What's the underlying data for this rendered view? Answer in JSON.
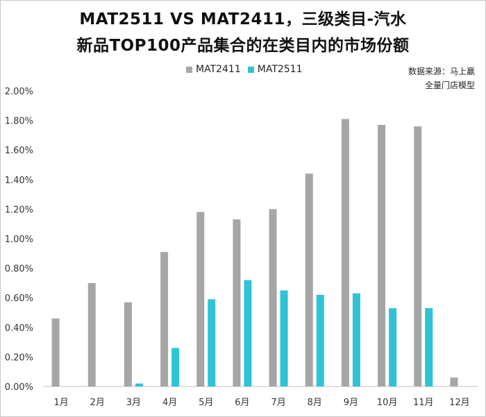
{
  "title_line1": "MAT2511 VS MAT2411，三级类目-汽水",
  "title_line2": "新品TOP100产品集合的在类目内的市场份额",
  "source_line1": "数据来源：马上赢",
  "source_line2": "全量门店模型",
  "chart_data": {
    "type": "bar",
    "categories": [
      "1月",
      "2月",
      "3月",
      "4月",
      "5月",
      "6月",
      "7月",
      "8月",
      "9月",
      "10月",
      "11月",
      "12月"
    ],
    "series": [
      {
        "name": "MAT2411",
        "color": "#a6a6a6",
        "values": [
          0.46,
          0.7,
          0.57,
          0.91,
          1.18,
          1.13,
          1.2,
          1.44,
          1.81,
          1.77,
          1.76,
          0.06
        ]
      },
      {
        "name": "MAT2511",
        "color": "#2ec4d6",
        "values": [
          null,
          null,
          0.02,
          0.26,
          0.59,
          0.72,
          0.65,
          0.62,
          0.63,
          0.53,
          0.53,
          null
        ]
      }
    ],
    "y_ticks": [
      "0.00%",
      "0.20%",
      "0.40%",
      "0.60%",
      "0.80%",
      "1.00%",
      "1.20%",
      "1.40%",
      "1.60%",
      "1.80%",
      "2.00%"
    ],
    "ylim": [
      0,
      2.0
    ],
    "unit": "%",
    "grid": false,
    "legend_position": "top-center"
  }
}
